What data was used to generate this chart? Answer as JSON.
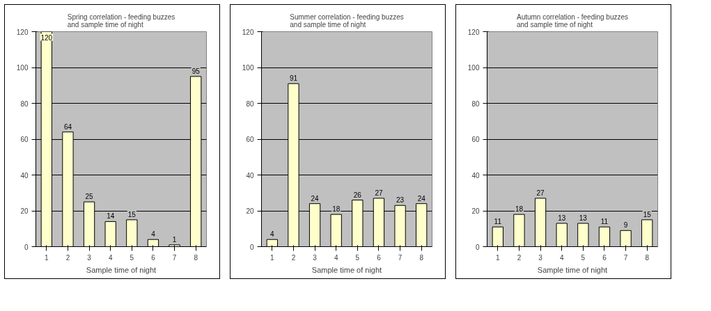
{
  "chart_data": [
    {
      "type": "bar",
      "title": "Spring correlation - feeding buzzes and sample time of night",
      "xlabel": "Sample time of night",
      "categories": [
        "1",
        "2",
        "3",
        "4",
        "5",
        "6",
        "7",
        "8"
      ],
      "values": [
        120,
        64,
        25,
        14,
        15,
        4,
        1,
        95
      ],
      "color": "#ffffcc",
      "ylim": [
        0,
        120
      ],
      "yticks": [
        0,
        20,
        40,
        60,
        80,
        100,
        120
      ],
      "grid": "y",
      "data_labels": true
    },
    {
      "type": "bar",
      "title": "Summer correlation - feeding buzzes and sample time of night",
      "xlabel": "Sample time of night",
      "categories": [
        "1",
        "2",
        "3",
        "4",
        "5",
        "6",
        "7",
        "8"
      ],
      "values": [
        4,
        91,
        24,
        18,
        26,
        27,
        23,
        24
      ],
      "color": "#ffffcc",
      "ylim": [
        0,
        120
      ],
      "yticks": [
        0,
        20,
        40,
        60,
        80,
        100,
        120
      ],
      "grid": "y",
      "data_labels": true
    },
    {
      "type": "bar",
      "title": "Autumn correlation - feeding buzzes and sample time of night",
      "xlabel": "Sample time of night",
      "categories": [
        "1",
        "2",
        "3",
        "4",
        "5",
        "6",
        "7",
        "8"
      ],
      "values": [
        11,
        18,
        27,
        13,
        13,
        11,
        9,
        15
      ],
      "color": "#ffffcc",
      "ylim": [
        0,
        120
      ],
      "yticks": [
        0,
        20,
        40,
        60,
        80,
        100,
        120
      ],
      "grid": "y",
      "data_labels": true
    }
  ]
}
